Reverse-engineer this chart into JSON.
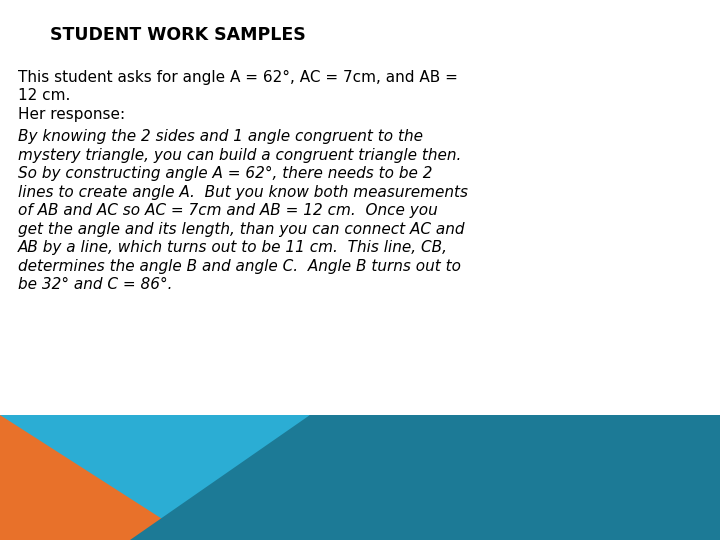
{
  "title": "STUDENT WORK SAMPLES",
  "line1": "This student asks for angle A = 62°, AC = 7cm, and AB =",
  "line2": "12 cm.",
  "line3": "Her response:",
  "italic_lines": [
    "By knowing the 2 sides and 1 angle congruent to the",
    "mystery triangle, you can build a congruent triangle then.",
    "So by constructing angle A = 62°, there needs to be 2",
    "lines to create angle A.  But you know both measurements",
    "of AB and AC so AC = 7cm and AB = 12 cm.  Once you",
    "get the angle and its length, than you can connect AC and",
    "AB by a line, which turns out to be 11 cm.  This line, CB,",
    "determines the angle B and angle C.  Angle B turns out to",
    "be 32° and C = 86°."
  ],
  "bg_color": "#ffffff",
  "title_color": "#000000",
  "text_color": "#000000",
  "cyan_color": "#2BADD4",
  "orange_color": "#E8712A",
  "dark_teal_color": "#1C7A96"
}
